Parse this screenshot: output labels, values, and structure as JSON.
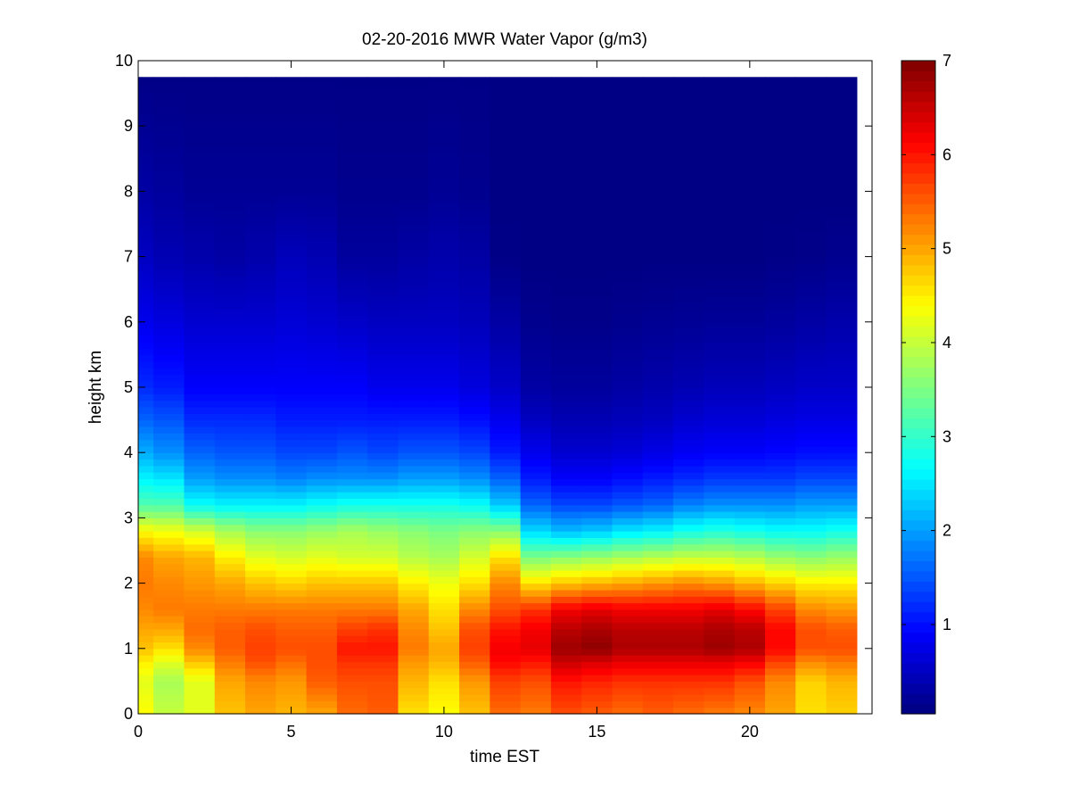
{
  "chart_data": {
    "type": "heatmap",
    "title": "02-20-2016 MWR Water Vapor (g/m3)",
    "xlabel": "time EST",
    "ylabel": "height km",
    "xlim": [
      0,
      24
    ],
    "ylim": [
      0,
      10
    ],
    "x_ticks": [
      0,
      5,
      10,
      15,
      20
    ],
    "y_ticks": [
      0,
      1,
      2,
      3,
      4,
      5,
      6,
      7,
      8,
      9,
      10
    ],
    "colorbar": {
      "range": [
        0.05,
        7
      ],
      "ticks": [
        1,
        2,
        3,
        4,
        5,
        6,
        7
      ],
      "colormap": "jet"
    },
    "x": [
      0,
      1,
      2,
      3,
      4,
      5,
      6,
      7,
      8,
      9,
      10,
      11,
      12,
      13,
      14,
      15,
      16,
      17,
      18,
      19,
      20,
      21,
      22,
      23
    ],
    "data_extent": {
      "x": [
        0,
        23.5
      ],
      "y": [
        0,
        9.75
      ]
    },
    "profile_heights_km": [
      0,
      0.5,
      0.8,
      1.0,
      1.3,
      1.6,
      2.0,
      2.4,
      2.8,
      3.2,
      3.6,
      4.0,
      4.5,
      5.0,
      6.0,
      7.0,
      8.0,
      9.75
    ],
    "profiles": [
      [
        4.4,
        4.2,
        4.5,
        4.8,
        5.0,
        5.2,
        5.3,
        5.2,
        4.4,
        3.2,
        2.6,
        2.1,
        1.6,
        1.2,
        0.8,
        0.5,
        0.3,
        0.1
      ],
      [
        4.0,
        3.8,
        4.2,
        4.6,
        5.0,
        5.3,
        5.2,
        5.0,
        4.3,
        3.2,
        2.5,
        1.9,
        1.5,
        1.1,
        0.7,
        0.4,
        0.25,
        0.1
      ],
      [
        4.2,
        4.2,
        4.8,
        5.2,
        5.4,
        5.3,
        5.1,
        4.9,
        4.1,
        2.7,
        2.0,
        1.6,
        1.2,
        0.9,
        0.6,
        0.35,
        0.2,
        0.1
      ],
      [
        4.8,
        5.0,
        5.3,
        5.5,
        5.5,
        5.3,
        5.0,
        4.5,
        3.8,
        2.6,
        1.9,
        1.5,
        1.2,
        0.9,
        0.6,
        0.3,
        0.2,
        0.1
      ],
      [
        5.0,
        5.2,
        5.6,
        5.7,
        5.6,
        5.3,
        4.8,
        4.2,
        3.6,
        2.6,
        1.9,
        1.5,
        1.2,
        0.9,
        0.6,
        0.35,
        0.2,
        0.1
      ],
      [
        4.9,
        5.1,
        5.4,
        5.6,
        5.5,
        5.3,
        4.7,
        4.1,
        3.6,
        2.6,
        1.8,
        1.4,
        1.1,
        0.9,
        0.65,
        0.45,
        0.2,
        0.1
      ],
      [
        5.0,
        5.5,
        5.6,
        5.6,
        5.5,
        5.3,
        4.8,
        4.2,
        3.7,
        2.7,
        1.9,
        1.4,
        1.1,
        0.9,
        0.6,
        0.4,
        0.2,
        0.1
      ],
      [
        5.4,
        5.6,
        5.8,
        6.0,
        5.7,
        5.3,
        4.8,
        4.1,
        3.8,
        2.8,
        1.9,
        1.5,
        1.1,
        0.9,
        0.55,
        0.25,
        0.15,
        0.1
      ],
      [
        5.5,
        5.6,
        5.8,
        6.0,
        5.8,
        5.3,
        4.8,
        4.1,
        3.7,
        2.8,
        1.9,
        1.4,
        1.1,
        0.8,
        0.5,
        0.25,
        0.15,
        0.1
      ],
      [
        4.6,
        4.9,
        5.1,
        5.3,
        5.2,
        5.0,
        4.5,
        3.9,
        3.6,
        2.8,
        2.0,
        1.5,
        1.1,
        0.8,
        0.5,
        0.3,
        0.15,
        0.1
      ],
      [
        4.4,
        4.6,
        4.9,
        5.0,
        4.8,
        4.6,
        4.3,
        3.8,
        3.5,
        2.8,
        2.0,
        1.5,
        1.1,
        0.8,
        0.5,
        0.35,
        0.2,
        0.1
      ],
      [
        4.8,
        5.1,
        5.5,
        5.7,
        5.6,
        5.2,
        4.6,
        4.1,
        3.6,
        2.7,
        1.9,
        1.4,
        1.0,
        0.7,
        0.45,
        0.3,
        0.15,
        0.1
      ],
      [
        5.4,
        5.7,
        6.1,
        6.2,
        6.0,
        5.6,
        5.2,
        4.6,
        3.6,
        2.3,
        1.6,
        1.1,
        0.8,
        0.55,
        0.3,
        0.1,
        0.08,
        0.08
      ],
      [
        5.3,
        5.6,
        6.0,
        6.3,
        6.2,
        5.8,
        4.6,
        3.5,
        2.4,
        1.6,
        1.1,
        0.8,
        0.5,
        0.3,
        0.15,
        0.08,
        0.08,
        0.08
      ],
      [
        5.6,
        6.0,
        6.5,
        6.8,
        6.6,
        6.2,
        4.8,
        3.6,
        2.2,
        1.4,
        0.9,
        0.6,
        0.4,
        0.25,
        0.12,
        0.08,
        0.08,
        0.08
      ],
      [
        5.5,
        5.9,
        6.4,
        6.9,
        6.7,
        6.3,
        4.9,
        3.7,
        2.3,
        1.4,
        0.9,
        0.6,
        0.4,
        0.25,
        0.12,
        0.08,
        0.08,
        0.08
      ],
      [
        5.4,
        5.8,
        6.3,
        6.7,
        6.6,
        6.2,
        5.0,
        3.8,
        2.5,
        1.5,
        1.0,
        0.65,
        0.45,
        0.3,
        0.15,
        0.08,
        0.08,
        0.08
      ],
      [
        5.5,
        5.8,
        6.3,
        6.7,
        6.6,
        6.2,
        5.1,
        3.9,
        2.6,
        1.6,
        1.1,
        0.75,
        0.5,
        0.35,
        0.18,
        0.08,
        0.08,
        0.08
      ],
      [
        5.4,
        5.8,
        6.3,
        6.7,
        6.6,
        6.2,
        5.2,
        4.0,
        2.8,
        1.8,
        1.2,
        0.85,
        0.6,
        0.4,
        0.2,
        0.08,
        0.08,
        0.08
      ],
      [
        5.3,
        5.8,
        6.3,
        6.8,
        6.7,
        6.3,
        5.1,
        4.0,
        2.9,
        1.9,
        1.3,
        0.9,
        0.65,
        0.45,
        0.22,
        0.08,
        0.08,
        0.08
      ],
      [
        5.2,
        5.6,
        6.2,
        6.7,
        6.6,
        6.1,
        4.9,
        3.9,
        2.8,
        1.9,
        1.3,
        0.9,
        0.65,
        0.45,
        0.22,
        0.08,
        0.08,
        0.08
      ],
      [
        5.0,
        5.2,
        5.7,
        6.1,
        6.1,
        5.7,
        4.7,
        3.7,
        2.7,
        1.9,
        1.3,
        0.95,
        0.7,
        0.5,
        0.25,
        0.1,
        0.08,
        0.08
      ],
      [
        4.6,
        4.7,
        5.2,
        5.6,
        5.6,
        5.2,
        4.5,
        3.6,
        2.7,
        2.0,
        1.4,
        1.0,
        0.75,
        0.55,
        0.3,
        0.12,
        0.08,
        0.08
      ],
      [
        4.7,
        4.9,
        5.3,
        5.6,
        5.5,
        5.1,
        4.5,
        3.7,
        2.8,
        2.0,
        1.4,
        1.0,
        0.75,
        0.55,
        0.35,
        0.15,
        0.08,
        0.08
      ]
    ]
  }
}
